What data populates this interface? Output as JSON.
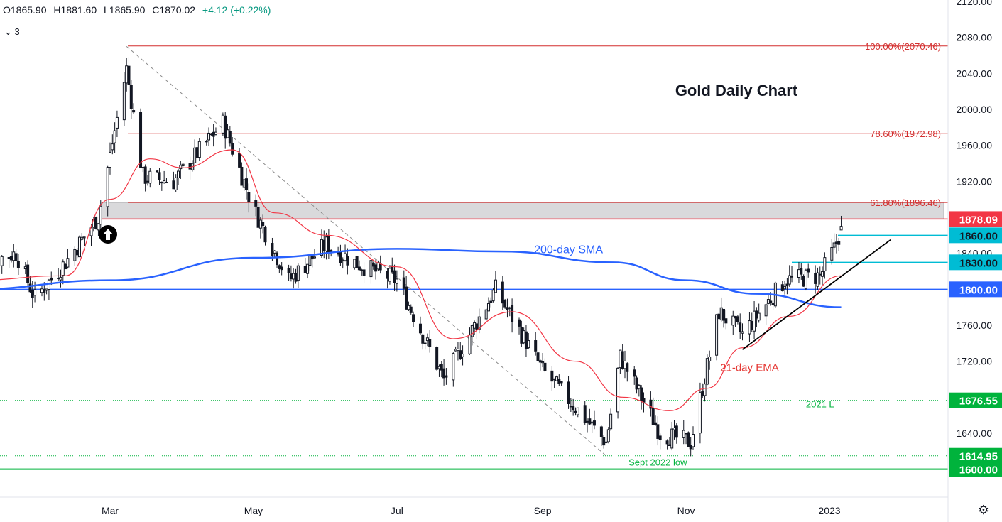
{
  "header": {
    "open_label": "O1865.90",
    "high_label": "H1881.60",
    "low_label": "L1865.90",
    "close_label": "C1870.02",
    "change_label": "+4.12 (+0.22%)",
    "indicator_toggle": "3"
  },
  "icons": {
    "settings": "gear-icon",
    "toggle": "chevron-down-icon",
    "signal": "arrow-up-circle-icon"
  },
  "colors": {
    "up": "#131722",
    "down": "#131722",
    "ema": "#f23645",
    "sma": "#2962ff",
    "fib": "#d32f2f",
    "support": "#2962ff",
    "cyan": "#00bcd4",
    "green": "#00b33c",
    "zone": "#d9d9db",
    "trend": "#000000"
  },
  "chart_data": {
    "type": "candlestick",
    "title": "Gold Daily Chart",
    "ylim": [
      1560,
      2130
    ],
    "y_ticks": [
      2120,
      2080,
      2040,
      2000,
      1960,
      1920,
      1880,
      1840,
      1800,
      1760,
      1720,
      1680,
      1640
    ],
    "y_tick_labels": [
      "2120.00",
      "2080.00",
      "2040.00",
      "2000.00",
      "1960.00",
      "1920.00",
      "1880.00",
      "1840.00",
      "1800.00",
      "1760.00",
      "1720.00",
      "1680.00",
      "1640.00"
    ],
    "xlim": [
      "2022-01-01",
      "2023-03-10"
    ],
    "x_ticks": [
      {
        "date": "2022-03-01",
        "label": "Mar"
      },
      {
        "date": "2022-05-01",
        "label": "May"
      },
      {
        "date": "2022-07-01",
        "label": "Jul"
      },
      {
        "date": "2022-09-01",
        "label": "Sep"
      },
      {
        "date": "2022-11-01",
        "label": "Nov"
      },
      {
        "date": "2023-01-01",
        "label": "2023"
      }
    ],
    "anchors": [
      {
        "date": "2022-01-01",
        "value": 1825
      },
      {
        "date": "2022-01-20",
        "value": 1840
      },
      {
        "date": "2022-01-28",
        "value": 1790
      },
      {
        "date": "2022-02-10",
        "value": 1830
      },
      {
        "date": "2022-02-24",
        "value": 1880
      },
      {
        "date": "2022-03-08",
        "value": 2045
      },
      {
        "date": "2022-03-15",
        "value": 1925
      },
      {
        "date": "2022-03-28",
        "value": 1920
      },
      {
        "date": "2022-04-18",
        "value": 1985
      },
      {
        "date": "2022-05-01",
        "value": 1890
      },
      {
        "date": "2022-05-16",
        "value": 1810
      },
      {
        "date": "2022-06-01",
        "value": 1850
      },
      {
        "date": "2022-06-13",
        "value": 1830
      },
      {
        "date": "2022-07-01",
        "value": 1810
      },
      {
        "date": "2022-07-21",
        "value": 1700
      },
      {
        "date": "2022-08-12",
        "value": 1800
      },
      {
        "date": "2022-09-01",
        "value": 1710
      },
      {
        "date": "2022-09-28",
        "value": 1630
      },
      {
        "date": "2022-10-04",
        "value": 1725
      },
      {
        "date": "2022-10-21",
        "value": 1640
      },
      {
        "date": "2022-11-03",
        "value": 1630
      },
      {
        "date": "2022-11-15",
        "value": 1775
      },
      {
        "date": "2022-11-25",
        "value": 1750
      },
      {
        "date": "2022-12-13",
        "value": 1810
      },
      {
        "date": "2022-12-28",
        "value": 1815
      },
      {
        "date": "2023-01-03",
        "value": 1845
      },
      {
        "date": "2023-01-06",
        "value": 1866
      }
    ],
    "last_candle": {
      "open": 1865.9,
      "high": 1881.6,
      "low": 1865.9,
      "close": 1870.02
    },
    "ema_21": {
      "label": "21-day EMA",
      "points": [
        {
          "date": "2022-01-01",
          "value": 1810
        },
        {
          "date": "2022-02-10",
          "value": 1815
        },
        {
          "date": "2022-03-01",
          "value": 1900
        },
        {
          "date": "2022-03-18",
          "value": 1945
        },
        {
          "date": "2022-04-01",
          "value": 1935
        },
        {
          "date": "2022-04-22",
          "value": 1955
        },
        {
          "date": "2022-05-10",
          "value": 1885
        },
        {
          "date": "2022-06-01",
          "value": 1860
        },
        {
          "date": "2022-07-01",
          "value": 1825
        },
        {
          "date": "2022-07-25",
          "value": 1745
        },
        {
          "date": "2022-08-19",
          "value": 1775
        },
        {
          "date": "2022-09-15",
          "value": 1720
        },
        {
          "date": "2022-10-05",
          "value": 1680
        },
        {
          "date": "2022-10-25",
          "value": 1665
        },
        {
          "date": "2022-11-10",
          "value": 1690
        },
        {
          "date": "2022-11-25",
          "value": 1735
        },
        {
          "date": "2022-12-15",
          "value": 1770
        },
        {
          "date": "2023-01-06",
          "value": 1815
        }
      ]
    },
    "sma_200": {
      "label": "200-day SMA",
      "points": [
        {
          "date": "2022-01-01",
          "value": 1800
        },
        {
          "date": "2022-03-01",
          "value": 1810
        },
        {
          "date": "2022-05-01",
          "value": 1835
        },
        {
          "date": "2022-07-01",
          "value": 1845
        },
        {
          "date": "2022-08-15",
          "value": 1842
        },
        {
          "date": "2022-10-01",
          "value": 1830
        },
        {
          "date": "2022-11-01",
          "value": 1810
        },
        {
          "date": "2022-12-01",
          "value": 1795
        },
        {
          "date": "2023-01-06",
          "value": 1780
        }
      ]
    },
    "fib_levels": [
      {
        "value": 2070.46,
        "label": "100.00%(2070.46)"
      },
      {
        "value": 1972.98,
        "label": "78.60%(1972.98)"
      },
      {
        "value": 1896.46,
        "label": "61.80%(1896.46)"
      }
    ],
    "resistance_zone": {
      "low": 1878.09,
      "high": 1896.46
    },
    "horizontal_levels": [
      {
        "value": 1878.09,
        "label": "1878.09",
        "color": "#f23645"
      },
      {
        "value": 1860.0,
        "label": "1860.00",
        "color": "#00bcd4"
      },
      {
        "value": 1830.0,
        "label": "1830.00",
        "color": "#00bcd4"
      },
      {
        "value": 1800.0,
        "label": "1800.00",
        "color": "#2962ff"
      },
      {
        "value": 1676.55,
        "label": "1676.55",
        "color": "#00b33c"
      },
      {
        "value": 1614.95,
        "label": "1614.95",
        "color": "#00b33c"
      },
      {
        "value": 1600.0,
        "label": "1600.00",
        "color": "#00b33c"
      }
    ],
    "annotations": [
      {
        "text": "200-day SMA",
        "date": "2022-09-12",
        "value": 1840
      },
      {
        "text": "21-day EMA",
        "date": "2022-11-28",
        "value": 1709
      },
      {
        "text": "2021 L",
        "date": "2022-12-28",
        "value": 1669
      },
      {
        "text": "Sept 2022 low",
        "date": "2022-10-20",
        "value": 1604
      }
    ],
    "trendline": {
      "from": {
        "date": "2022-11-25",
        "value": 1733
      },
      "to": {
        "date": "2023-01-27",
        "value": 1855
      }
    },
    "diagonal": {
      "from": {
        "date": "2022-03-08",
        "value": 2070
      },
      "to": {
        "date": "2022-09-28",
        "value": 1615
      }
    }
  }
}
